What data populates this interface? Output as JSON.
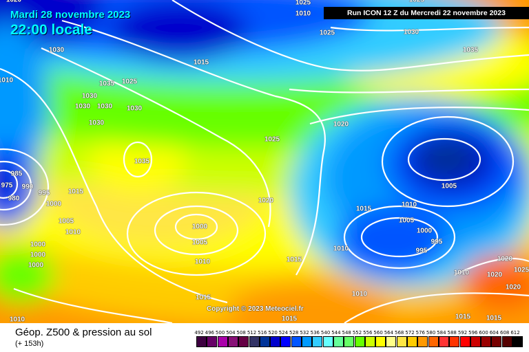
{
  "header": {
    "date": "Mardi 28 novembre 2023",
    "time": "22:00 locale",
    "run": "Run ICON 12 Z du Mercredi 22 novembre 2023"
  },
  "copyright": "Copyright © 2023 Meteociel.fr",
  "footer": {
    "title": "Géop. Z500 & pression au sol",
    "subtitle": "(+ 153h)"
  },
  "legend": {
    "ticks": [
      "492",
      "496",
      "500",
      "504",
      "508",
      "512",
      "516",
      "520",
      "524",
      "528",
      "532",
      "536",
      "540",
      "544",
      "548",
      "552",
      "556",
      "560",
      "564",
      "568",
      "572",
      "576",
      "580",
      "584",
      "588",
      "592",
      "596",
      "600",
      "604",
      "608",
      "612"
    ],
    "colors": [
      "#3d0040",
      "#660066",
      "#aa00aa",
      "#881177",
      "#660044",
      "#333366",
      "#003399",
      "#0000cc",
      "#0000ff",
      "#0055ff",
      "#0099ff",
      "#33ccff",
      "#66ffff",
      "#66ff99",
      "#66ff66",
      "#66ff00",
      "#ccff00",
      "#ffff00",
      "#ffff88",
      "#ffe644",
      "#ffcc00",
      "#ff9900",
      "#ff6600",
      "#ff3333",
      "#ff3300",
      "#ff0000",
      "#cc0000",
      "#990000",
      "#770000",
      "#550000",
      "#000000"
    ]
  },
  "isobar_labels": [
    "1020",
    "1025",
    "1025",
    "1010",
    "1025",
    "1030",
    "1035",
    "1030",
    "1015",
    "1025",
    "1035",
    "1010",
    "1030",
    "1030",
    "1030",
    "1030",
    "1030",
    "1020",
    "1025",
    "1035",
    "985",
    "975",
    "990",
    "995",
    "980",
    "1000",
    "1015",
    "1020",
    "1015",
    "1010",
    "1005",
    "1005",
    "1000",
    "995",
    "995",
    "1000",
    "1005",
    "1005",
    "1010",
    "1000",
    "1000",
    "1000",
    "1010",
    "1015",
    "1010",
    "1015",
    "1010",
    "1020",
    "1025",
    "1010",
    "1020",
    "1020",
    "1015",
    "1015",
    "1015",
    "1010"
  ]
}
